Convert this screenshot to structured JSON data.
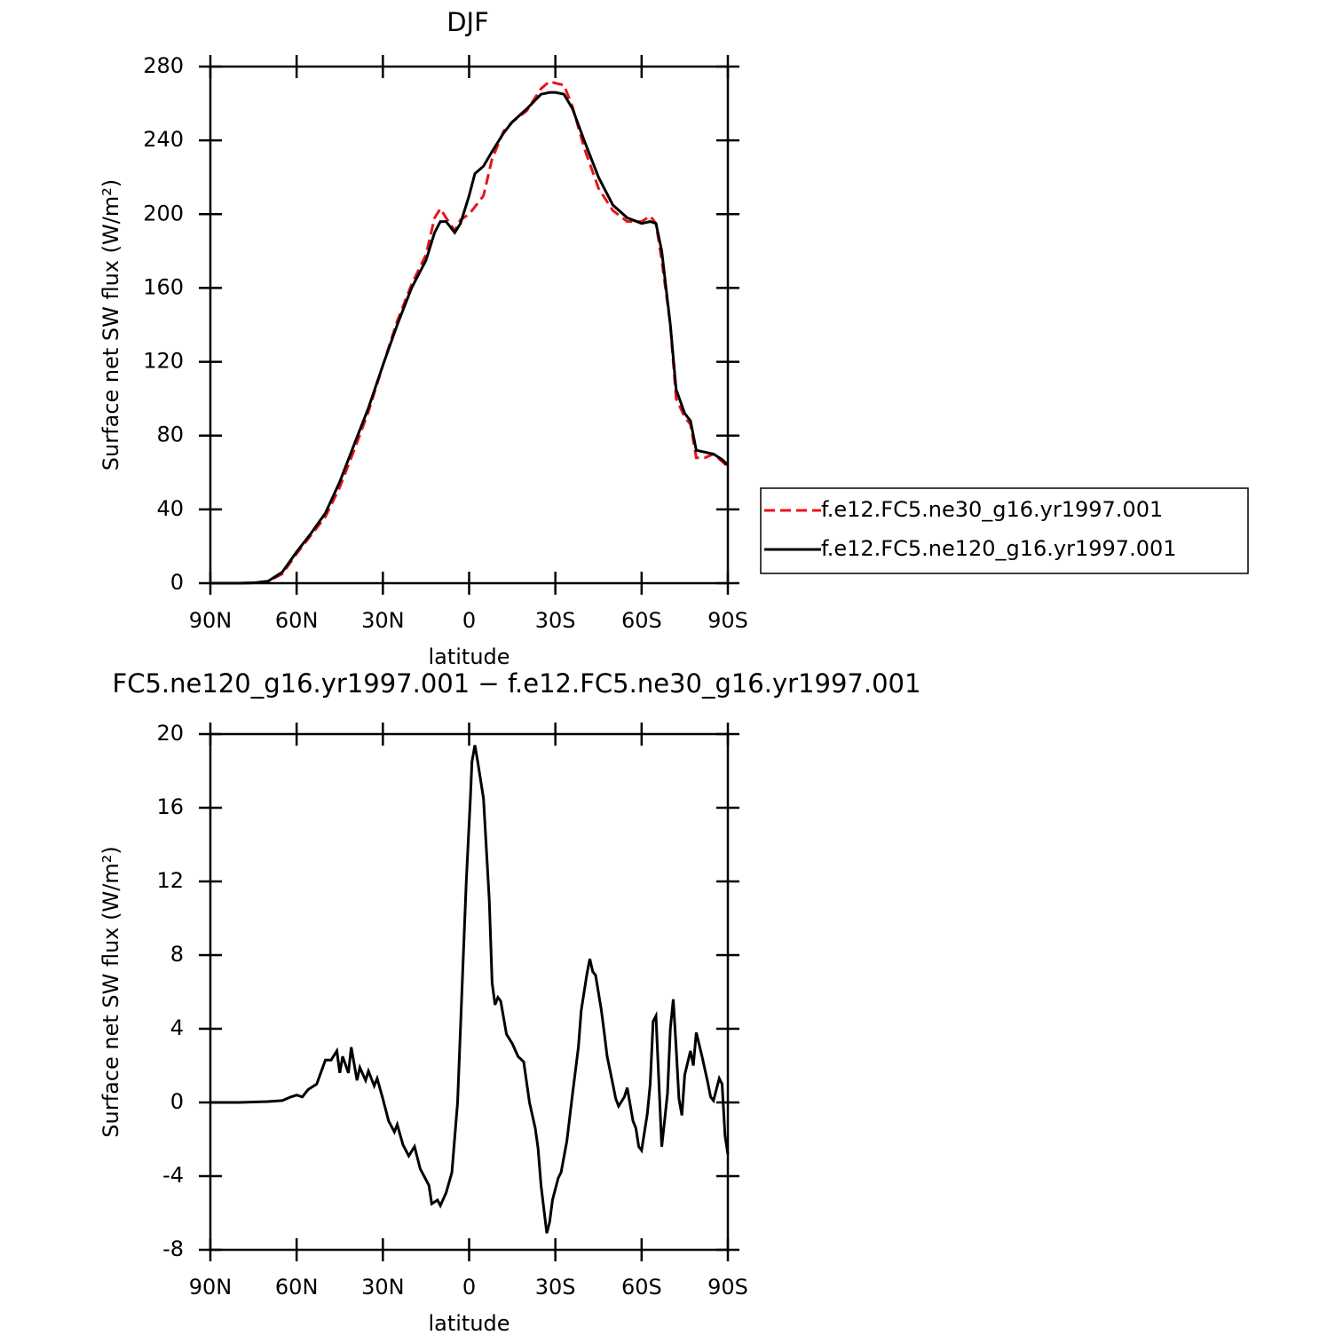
{
  "chart_data": [
    {
      "type": "line",
      "title": "DJF",
      "x_label": "latitude",
      "y_label": "Surface net SW flux (W/m²)",
      "xlim": [
        90,
        -90
      ],
      "xticks": [
        {
          "value": 90,
          "label": "90N"
        },
        {
          "value": 60,
          "label": "60N"
        },
        {
          "value": 30,
          "label": "30N"
        },
        0,
        {
          "value": -30,
          "label": "30S"
        },
        {
          "value": -60,
          "label": "60S"
        },
        {
          "value": -90,
          "label": "90S"
        }
      ],
      "ylim": [
        0,
        280
      ],
      "yticks": [
        0,
        40,
        80,
        120,
        160,
        200,
        240,
        280
      ],
      "legend": "right",
      "x": [
        90,
        80,
        75,
        70,
        65,
        60,
        55,
        50,
        45,
        40,
        35,
        30,
        25,
        20,
        15,
        12,
        10,
        8,
        5,
        3,
        0,
        -2,
        -5,
        -8,
        -12,
        -15,
        -20,
        -25,
        -28,
        -30,
        -33,
        -36,
        -40,
        -45,
        -50,
        -55,
        -60,
        -63,
        -65,
        -67,
        -70,
        -72,
        -75,
        -77,
        -79,
        -82,
        -85,
        -88,
        -90
      ],
      "series": [
        {
          "name": "f.e12.FC5.ne30_g16.yr1997.001",
          "color": "#e8141a",
          "linestyle": "dashed",
          "values": [
            0,
            0,
            0.2,
            1,
            5,
            16,
            26,
            36,
            52,
            72,
            93,
            118,
            142,
            162,
            178,
            198,
            203,
            198,
            191,
            197,
            200,
            204,
            210,
            230,
            245,
            250,
            256,
            268,
            272,
            271,
            270,
            258,
            236,
            214,
            202,
            196,
            196,
            199,
            195,
            175,
            140,
            100,
            90,
            86,
            68,
            68,
            70,
            66,
            63
          ]
        },
        {
          "name": "f.e12.FC5.ne120_g16.yr1997.001",
          "color": "#000000",
          "linestyle": "solid",
          "values": [
            0,
            0,
            0.2,
            1,
            6,
            17,
            27,
            38,
            55,
            75,
            95,
            118,
            140,
            160,
            175,
            190,
            196,
            196,
            190,
            195,
            210,
            222,
            226,
            234,
            244,
            250,
            257,
            265,
            266,
            266,
            265,
            257,
            240,
            220,
            205,
            198,
            195,
            196,
            195,
            180,
            140,
            105,
            92,
            88,
            72,
            71,
            70,
            67,
            64
          ]
        }
      ]
    },
    {
      "type": "line",
      "title": "FC5.ne120_g16.yr1997.001 − f.e12.FC5.ne30_g16.yr1997.001",
      "x_label": "latitude",
      "y_label": "Surface net SW flux (W/m²)",
      "xlim": [
        90,
        -90
      ],
      "xticks": [
        {
          "value": 90,
          "label": "90N"
        },
        {
          "value": 60,
          "label": "60N"
        },
        {
          "value": 30,
          "label": "30N"
        },
        0,
        {
          "value": -30,
          "label": "30S"
        },
        {
          "value": -60,
          "label": "60S"
        },
        {
          "value": -90,
          "label": "90S"
        }
      ],
      "ylim": [
        -8,
        20
      ],
      "yticks": [
        -8,
        -4,
        0,
        4,
        8,
        12,
        16,
        20
      ],
      "x": [
        90,
        80,
        70,
        65,
        62,
        60,
        58,
        56,
        53,
        50,
        48,
        46,
        45,
        44,
        42,
        41,
        39,
        38,
        36,
        35,
        33,
        32,
        30,
        28,
        26,
        25,
        23,
        21,
        19,
        17,
        14,
        13,
        11,
        10,
        8,
        6,
        4,
        2,
        1,
        -0.5,
        -1,
        -2,
        -3,
        -5,
        -7,
        -8,
        -9,
        -10,
        -11,
        -13,
        -15,
        -17,
        -19,
        -21,
        -23,
        -24,
        -25,
        -27,
        -28,
        -29,
        -31,
        -32,
        -34,
        -36,
        -38,
        -39,
        -41,
        -42,
        -43,
        -44,
        -46,
        -47,
        -48,
        -50,
        -51,
        -52,
        -54,
        -55,
        -57,
        -58,
        -59,
        -60,
        -62,
        -63,
        -64,
        -65,
        -67,
        -68,
        -69,
        -70,
        -71,
        -72,
        -73,
        -74,
        -75,
        -77,
        -78,
        -79,
        -81,
        -83,
        -84,
        -85,
        -87,
        -88,
        -89,
        -90
      ],
      "series": [
        {
          "color": "#000000",
          "linestyle": "solid",
          "values": [
            0,
            0,
            0.05,
            0.1,
            0.3,
            0.4,
            0.3,
            0.7,
            1.0,
            2.3,
            2.3,
            2.8,
            1.6,
            2.5,
            1.6,
            3.0,
            1.2,
            1.9,
            1.2,
            1.7,
            0.9,
            1.3,
            0.2,
            -1.0,
            -1.6,
            -1.2,
            -2.3,
            -2.9,
            -2.4,
            -3.6,
            -4.5,
            -5.5,
            -5.3,
            -5.6,
            -4.9,
            -3.8,
            0,
            8,
            12,
            16.7,
            18.5,
            19.4,
            18.5,
            16.5,
            11,
            6.5,
            5.3,
            5.7,
            5.5,
            3.7,
            3.2,
            2.5,
            2.2,
            0,
            -1.4,
            -2.5,
            -4.5,
            -7.1,
            -6.5,
            -5.3,
            -4.1,
            -3.8,
            -2.1,
            0.5,
            3.0,
            5.0,
            7.0,
            7.8,
            7.1,
            6.9,
            5.0,
            3.8,
            2.5,
            1.0,
            0.2,
            -0.2,
            0.3,
            0.8,
            -1.0,
            -1.4,
            -2.4,
            -2.6,
            -0.6,
            1.0,
            4.4,
            4.7,
            -2.4,
            -1.0,
            0.5,
            4.0,
            5.6,
            3.0,
            0.2,
            -0.7,
            1.5,
            2.8,
            2.0,
            3.8,
            2.5,
            1.1,
            0.3,
            0.1,
            1.3,
            1.0,
            -1.8,
            -2.8
          ]
        }
      ]
    }
  ]
}
